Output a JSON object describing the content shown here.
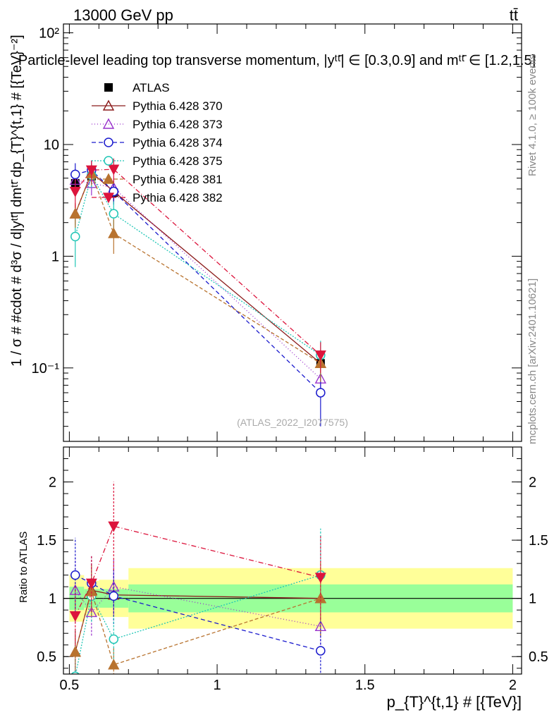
{
  "header": {
    "energy_label": "13000 GeV pp",
    "process_label": "tt̄",
    "plot_title": "Particle-level leading top transverse momentum, |yᵗᵗ̄| ∈ [0.3,0.9] and mᵗᵗ̄ ∈ [1.2,1.5]",
    "analysis_id": "(ATLAS_2022_I2077575)",
    "rivet_label": "Rivet 4.1.0, ≥ 100k events",
    "mcplots_label": "mcplots.cern.ch [arXiv:2401.10621]"
  },
  "chart_data": [
    {
      "type": "line",
      "name": "main",
      "yscale": "log",
      "ylabel": "1 / σ # #cdot # d³σ / d|yᵗᵗ̄| dmᵗᵗ̄ dp_{T}^{t,1} # [{TeV}⁻²]",
      "xlim": [
        0.48,
        2.03
      ],
      "ylim": [
        0.022,
        120
      ],
      "ytick_values": [
        0.1,
        1,
        10,
        100
      ],
      "ytick_labels": [
        "10⁻¹",
        "1",
        "10",
        "10²"
      ],
      "x": [
        0.52,
        0.575,
        0.65,
        1.35
      ],
      "series": [
        {
          "name": "ATLAS",
          "color": "#000000",
          "marker": "square",
          "dash": "none",
          "values": [
            4.5,
            5.2,
            3.7,
            0.11
          ],
          "errors": [
            0.7,
            0.8,
            0.6,
            0.03
          ]
        },
        {
          "name": "Pythia 6.428 370",
          "color": "#8b1a1a",
          "marker": "triangle-open",
          "dash": "none",
          "values": [
            2.4,
            5.6,
            3.8,
            0.11
          ],
          "errors": [
            0.5,
            1.1,
            0.8,
            0.035
          ]
        },
        {
          "name": "Pythia 6.428 373",
          "color": "#9932cc",
          "marker": "triangle-open",
          "dash": "1,3",
          "values": [
            4.8,
            4.5,
            4.1,
            0.08
          ],
          "errors": [
            1.2,
            1.0,
            0.9,
            0.025
          ]
        },
        {
          "name": "Pythia 6.428 374",
          "color": "#1a1acd",
          "marker": "circle-open",
          "dash": "6,4",
          "values": [
            5.4,
            5.9,
            3.8,
            0.06
          ],
          "errors": [
            1.4,
            1.3,
            0.9,
            0.03
          ]
        },
        {
          "name": "Pythia 6.428 375",
          "color": "#20c6b6",
          "marker": "circle-open",
          "dash": "2,2",
          "values": [
            1.5,
            5.3,
            2.4,
            0.13
          ],
          "errors": [
            0.7,
            1.2,
            0.7,
            0.045
          ]
        },
        {
          "name": "Pythia 6.428 381",
          "color": "#b8732f",
          "marker": "triangle-filled",
          "dash": "5,3",
          "values": [
            2.4,
            5.5,
            1.6,
            0.11
          ],
          "errors": [
            0.6,
            1.2,
            0.55,
            0.035
          ]
        },
        {
          "name": "Pythia 6.428 382",
          "color": "#dc143c",
          "marker": "triangle-down-filled",
          "dash": "7,3,1,3",
          "values": [
            3.8,
            5.9,
            6.0,
            0.13
          ],
          "errors": [
            1.1,
            1.3,
            1.5,
            0.04
          ]
        }
      ]
    },
    {
      "type": "line",
      "name": "ratio",
      "ylabel": "Ratio to ATLAS",
      "xlabel": "p_{T}^{t,1} # [{TeV}]",
      "xlim": [
        0.48,
        2.03
      ],
      "ylim": [
        0.35,
        2.3
      ],
      "ytick_values": [
        0.5,
        1,
        1.5,
        2
      ],
      "ytick_labels": [
        "0.5",
        "1",
        "1.5",
        "2"
      ],
      "xtick_values": [
        0.5,
        1,
        1.5,
        2
      ],
      "xtick_labels": [
        "0.5",
        "1",
        "1.5",
        "2"
      ],
      "x": [
        0.52,
        0.575,
        0.65,
        1.35
      ],
      "bands": [
        {
          "x0": 0.5,
          "x1": 0.55,
          "inner": [
            0.9,
            1.1
          ],
          "outer": [
            0.8,
            1.2
          ]
        },
        {
          "x0": 0.55,
          "x1": 0.6,
          "inner": [
            0.92,
            1.08
          ],
          "outer": [
            0.85,
            1.15
          ]
        },
        {
          "x0": 0.6,
          "x1": 0.7,
          "inner": [
            0.92,
            1.08
          ],
          "outer": [
            0.84,
            1.16
          ]
        },
        {
          "x0": 0.7,
          "x1": 2.0,
          "inner": [
            0.88,
            1.12
          ],
          "outer": [
            0.74,
            1.26
          ]
        }
      ],
      "series": [
        {
          "name": "Pythia 6.428 370",
          "values": [
            0.54,
            1.07,
            1.03,
            1.0
          ],
          "errors": [
            0.2,
            0.22,
            0.22,
            0.32
          ]
        },
        {
          "name": "Pythia 6.428 373",
          "values": [
            1.07,
            0.88,
            1.1,
            0.76
          ],
          "errors": [
            0.28,
            0.2,
            0.24,
            0.22
          ]
        },
        {
          "name": "Pythia 6.428 374",
          "values": [
            1.2,
            1.13,
            1.02,
            0.55
          ],
          "errors": [
            0.32,
            0.24,
            0.24,
            0.28
          ]
        },
        {
          "name": "Pythia 6.428 375",
          "values": [
            0.33,
            1.02,
            0.65,
            1.2
          ],
          "errors": [
            0.15,
            0.22,
            0.2,
            0.4
          ]
        },
        {
          "name": "Pythia 6.428 381",
          "values": [
            0.54,
            1.06,
            0.43,
            1.0
          ],
          "errors": [
            0.15,
            0.22,
            0.15,
            0.32
          ]
        },
        {
          "name": "Pythia 6.428 382",
          "values": [
            0.85,
            1.13,
            1.62,
            1.18
          ],
          "errors": [
            0.25,
            0.24,
            0.38,
            0.36
          ]
        }
      ]
    }
  ]
}
